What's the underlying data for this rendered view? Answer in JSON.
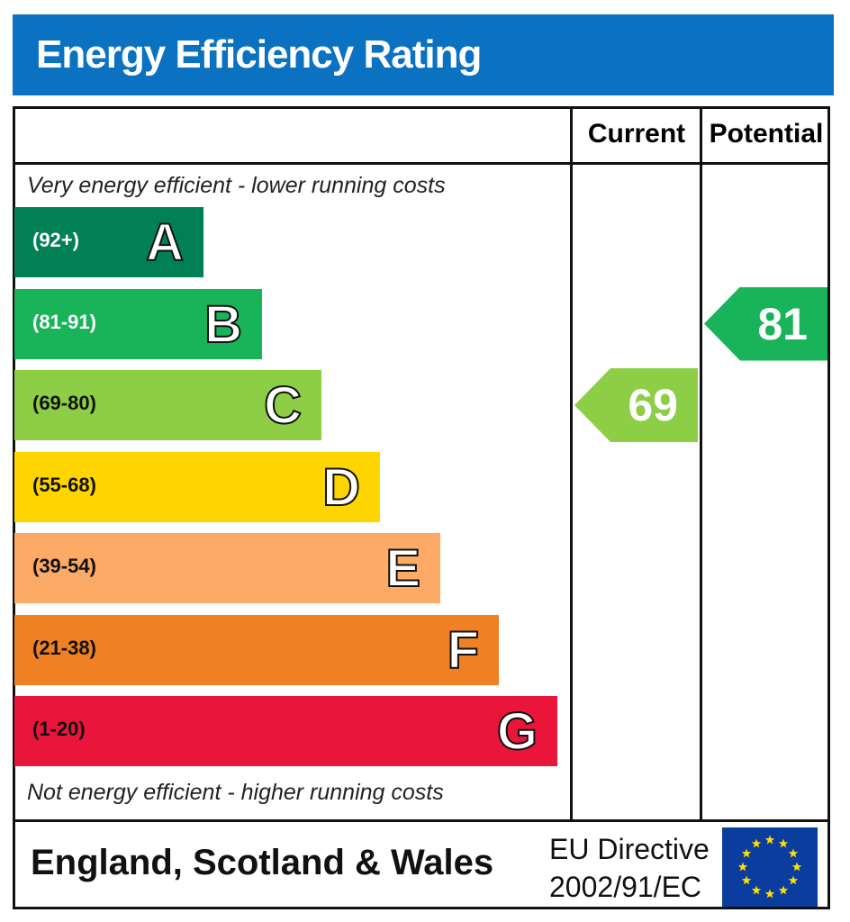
{
  "header": {
    "title": "Energy Efficiency Rating"
  },
  "columns": {
    "current": "Current",
    "potential": "Potential"
  },
  "notes": {
    "top": "Very energy efficient - lower running costs",
    "bottom": "Not energy efficient - higher running costs"
  },
  "footer": {
    "region": "England, Scotland & Wales",
    "directive_line1": "EU Directive",
    "directive_line2": "2002/91/EC",
    "flag_icon": "eu-flag-icon"
  },
  "chart_data": {
    "type": "bar",
    "title": "Energy Efficiency Rating",
    "bands": [
      {
        "letter": "A",
        "range": "(92+)",
        "color": "#008054",
        "text_color": "#ffffff"
      },
      {
        "letter": "B",
        "range": "(81-91)",
        "color": "#19b459",
        "text_color": "#ffffff"
      },
      {
        "letter": "C",
        "range": "(69-80)",
        "color": "#8dce46",
        "text_color": "#111111"
      },
      {
        "letter": "D",
        "range": "(55-68)",
        "color": "#ffd500",
        "text_color": "#111111"
      },
      {
        "letter": "E",
        "range": "(39-54)",
        "color": "#fcaa65",
        "text_color": "#111111"
      },
      {
        "letter": "F",
        "range": "(21-38)",
        "color": "#ef8023",
        "text_color": "#111111"
      },
      {
        "letter": "G",
        "range": "(1-20)",
        "color": "#e9153b",
        "text_color": "#111111"
      }
    ],
    "current": {
      "value": "69",
      "band": "C",
      "color": "#8dce46"
    },
    "potential": {
      "value": "81",
      "band": "B",
      "color": "#19b459"
    }
  }
}
